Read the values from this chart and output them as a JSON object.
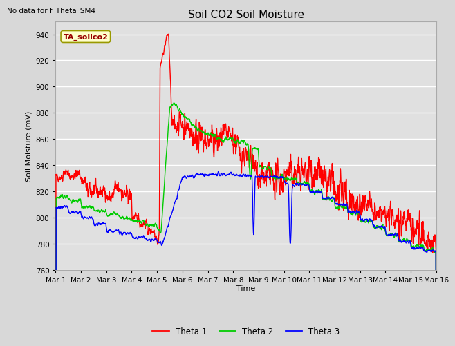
{
  "title": "Soil CO2 Soil Moisture",
  "top_left_text": "No data for f_Theta_SM4",
  "annotation_text": "TA_soilco2",
  "ylabel": "Soil Moisture (mV)",
  "xlabel": "Time",
  "xlim_days": [
    0,
    15
  ],
  "ylim": [
    760,
    950
  ],
  "yticks": [
    760,
    780,
    800,
    820,
    840,
    860,
    880,
    900,
    920,
    940
  ],
  "xtick_labels": [
    "Mar 1",
    "Mar 2",
    "Mar 3",
    "Mar 4",
    "Mar 5",
    "Mar 6",
    "Mar 7",
    "Mar 8",
    "Mar 9",
    "Mar 10",
    "Mar 11",
    "Mar 12",
    "Mar 13",
    "Mar 14",
    "Mar 15",
    "Mar 16"
  ],
  "bg_color": "#d8d8d8",
  "plot_bg_color": "#e0e0e0",
  "grid_color": "#ffffff",
  "line_colors": {
    "theta1": "#ff0000",
    "theta2": "#00cc00",
    "theta3": "#0000ff"
  },
  "annotation_text_color": "#990000",
  "annotation_bg": "#ffffcc",
  "annotation_edge": "#999900",
  "legend_labels": [
    "Theta 1",
    "Theta 2",
    "Theta 3"
  ],
  "title_fontsize": 11,
  "axis_fontsize": 8,
  "tick_fontsize": 7.5
}
